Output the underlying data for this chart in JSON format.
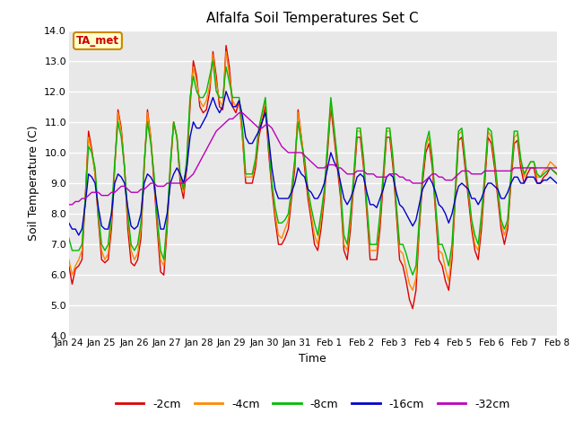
{
  "title": "Alfalfa Soil Temperatures Set C",
  "xlabel": "Time",
  "ylabel": "Soil Temperature (C)",
  "ylim": [
    4.0,
    14.0
  ],
  "yticks": [
    4.0,
    5.0,
    6.0,
    7.0,
    8.0,
    9.0,
    10.0,
    11.0,
    12.0,
    13.0,
    14.0
  ],
  "xtick_labels": [
    "Jan 24",
    "Jan 25",
    "Jan 26",
    "Jan 27",
    "Jan 28",
    "Jan 29",
    "Jan 30",
    "Jan 31",
    "Feb 1",
    "Feb 2",
    "Feb 3",
    "Feb 4",
    "Feb 5",
    "Feb 6",
    "Feb 7",
    "Feb 8"
  ],
  "figure_bg": "#ffffff",
  "plot_bg_color": "#e8e8e8",
  "grid_color": "#ffffff",
  "annotation_text": "TA_met",
  "annotation_bg": "#ffffcc",
  "annotation_border": "#cc8800",
  "annotation_text_color": "#cc0000",
  "colors": {
    "-2cm": "#dd0000",
    "-4cm": "#ff8800",
    "-8cm": "#00bb00",
    "-16cm": "#0000cc",
    "-32cm": "#bb00bb"
  },
  "series": {
    "-2cm": [
      6.3,
      5.7,
      6.2,
      6.3,
      6.5,
      8.5,
      10.7,
      10.1,
      9.3,
      7.8,
      6.5,
      6.4,
      6.5,
      7.5,
      9.5,
      11.4,
      10.8,
      9.5,
      7.5,
      6.4,
      6.3,
      6.5,
      7.2,
      9.5,
      11.4,
      10.5,
      9.0,
      7.5,
      6.1,
      6.0,
      7.5,
      9.5,
      11.0,
      10.5,
      9.0,
      8.5,
      9.5,
      11.5,
      13.0,
      12.5,
      11.5,
      11.3,
      11.4,
      12.0,
      13.3,
      12.5,
      11.5,
      11.4,
      13.5,
      12.8,
      11.5,
      11.3,
      11.7,
      10.5,
      9.0,
      9.0,
      9.0,
      9.5,
      10.5,
      11.0,
      11.5,
      10.0,
      8.8,
      7.8,
      7.0,
      7.0,
      7.2,
      7.5,
      8.5,
      9.5,
      11.4,
      10.5,
      9.5,
      8.5,
      7.8,
      7.0,
      6.8,
      7.5,
      8.5,
      10.0,
      11.5,
      10.5,
      9.5,
      8.5,
      6.8,
      6.5,
      7.5,
      9.0,
      10.5,
      10.5,
      9.5,
      8.0,
      6.5,
      6.5,
      6.5,
      7.5,
      9.0,
      10.5,
      10.5,
      9.5,
      8.0,
      6.5,
      6.3,
      5.8,
      5.2,
      4.9,
      5.5,
      7.5,
      9.0,
      10.0,
      10.3,
      9.5,
      8.0,
      6.5,
      6.3,
      5.8,
      5.5,
      6.5,
      8.5,
      10.4,
      10.5,
      9.5,
      8.5,
      7.5,
      6.8,
      6.5,
      7.5,
      9.0,
      10.5,
      10.3,
      9.5,
      8.5,
      7.5,
      7.0,
      7.5,
      9.0,
      10.3,
      10.4,
      9.5,
      9.0,
      9.3,
      9.5,
      9.5,
      9.0,
      9.0,
      9.2,
      9.3,
      9.5,
      9.4,
      9.3
    ],
    "-4cm": [
      6.5,
      6.0,
      6.3,
      6.5,
      6.8,
      8.5,
      10.5,
      10.0,
      9.3,
      7.9,
      6.8,
      6.5,
      6.7,
      7.8,
      9.5,
      11.3,
      10.7,
      9.5,
      7.8,
      6.8,
      6.5,
      6.7,
      7.5,
      9.5,
      11.3,
      10.5,
      9.2,
      7.7,
      6.5,
      6.3,
      7.7,
      9.5,
      11.0,
      10.5,
      9.2,
      8.7,
      9.7,
      11.7,
      12.8,
      12.3,
      11.7,
      11.5,
      11.7,
      12.2,
      13.2,
      12.3,
      11.7,
      11.5,
      13.3,
      12.5,
      11.7,
      11.5,
      11.7,
      10.5,
      9.2,
      9.2,
      9.2,
      9.7,
      10.7,
      11.2,
      11.7,
      10.2,
      9.0,
      8.0,
      7.3,
      7.2,
      7.5,
      7.8,
      8.7,
      9.7,
      11.3,
      10.5,
      9.7,
      8.7,
      8.0,
      7.3,
      7.0,
      7.8,
      8.7,
      10.2,
      11.7,
      10.7,
      9.7,
      8.7,
      7.0,
      6.8,
      7.8,
      9.2,
      10.7,
      10.7,
      9.7,
      8.2,
      6.8,
      6.8,
      6.8,
      7.8,
      9.2,
      10.7,
      10.7,
      9.7,
      8.2,
      6.8,
      6.7,
      6.2,
      5.7,
      5.5,
      5.9,
      7.7,
      9.2,
      10.2,
      10.5,
      9.7,
      8.2,
      6.8,
      6.7,
      6.2,
      5.8,
      6.8,
      8.7,
      10.6,
      10.7,
      9.7,
      8.7,
      7.7,
      7.0,
      6.8,
      7.8,
      9.2,
      10.7,
      10.5,
      9.7,
      8.7,
      7.7,
      7.3,
      7.7,
      9.2,
      10.5,
      10.6,
      9.7,
      9.2,
      9.5,
      9.7,
      9.7,
      9.2,
      9.2,
      9.4,
      9.5,
      9.7,
      9.6,
      9.5
    ],
    "-8cm": [
      7.2,
      6.8,
      6.8,
      6.8,
      7.0,
      8.5,
      10.2,
      10.0,
      9.5,
      8.0,
      7.0,
      6.8,
      7.0,
      8.0,
      9.7,
      11.0,
      10.5,
      9.5,
      8.0,
      7.0,
      6.8,
      7.0,
      7.7,
      9.7,
      11.0,
      10.3,
      9.3,
      7.8,
      6.8,
      6.5,
      7.8,
      9.7,
      11.0,
      10.5,
      9.3,
      8.8,
      9.8,
      11.8,
      12.5,
      12.0,
      11.8,
      11.8,
      12.0,
      12.5,
      13.0,
      12.0,
      11.8,
      11.8,
      12.8,
      12.3,
      11.8,
      11.8,
      11.8,
      10.8,
      9.3,
      9.3,
      9.3,
      9.8,
      10.8,
      11.3,
      11.8,
      10.3,
      9.0,
      8.2,
      7.7,
      7.7,
      7.8,
      8.0,
      8.8,
      9.8,
      11.0,
      10.3,
      9.8,
      8.8,
      8.2,
      7.7,
      7.3,
      8.0,
      8.8,
      10.3,
      11.8,
      10.8,
      9.8,
      8.8,
      7.3,
      7.0,
      8.0,
      9.3,
      10.8,
      10.8,
      9.8,
      8.3,
      7.0,
      7.0,
      7.0,
      8.0,
      9.3,
      10.8,
      10.8,
      9.8,
      8.3,
      7.0,
      7.0,
      6.7,
      6.3,
      6.0,
      6.3,
      7.8,
      9.3,
      10.3,
      10.7,
      9.8,
      8.3,
      7.0,
      7.0,
      6.7,
      6.3,
      7.0,
      8.8,
      10.7,
      10.8,
      9.8,
      8.8,
      7.8,
      7.3,
      7.0,
      8.0,
      9.3,
      10.8,
      10.7,
      9.8,
      8.8,
      7.8,
      7.5,
      7.8,
      9.3,
      10.7,
      10.7,
      9.8,
      9.3,
      9.5,
      9.7,
      9.7,
      9.3,
      9.2,
      9.3,
      9.4,
      9.5,
      9.4,
      9.3
    ],
    "-16cm": [
      7.7,
      7.5,
      7.5,
      7.3,
      7.5,
      8.3,
      9.3,
      9.2,
      9.0,
      8.2,
      7.6,
      7.5,
      7.5,
      8.0,
      9.0,
      9.3,
      9.2,
      9.0,
      8.2,
      7.6,
      7.5,
      7.6,
      8.0,
      9.0,
      9.3,
      9.2,
      9.0,
      8.2,
      7.5,
      7.5,
      8.0,
      9.0,
      9.3,
      9.5,
      9.3,
      9.0,
      9.5,
      10.5,
      11.0,
      10.8,
      10.8,
      11.0,
      11.2,
      11.5,
      11.8,
      11.5,
      11.3,
      11.5,
      12.0,
      11.7,
      11.5,
      11.5,
      11.7,
      11.2,
      10.5,
      10.3,
      10.3,
      10.5,
      10.7,
      11.0,
      11.3,
      10.5,
      9.5,
      8.8,
      8.5,
      8.5,
      8.5,
      8.5,
      8.7,
      9.0,
      9.5,
      9.3,
      9.2,
      8.8,
      8.7,
      8.5,
      8.5,
      8.7,
      9.0,
      9.5,
      10.0,
      9.7,
      9.5,
      9.0,
      8.5,
      8.3,
      8.5,
      8.8,
      9.2,
      9.3,
      9.2,
      8.7,
      8.3,
      8.3,
      8.2,
      8.5,
      8.8,
      9.2,
      9.3,
      9.2,
      8.7,
      8.3,
      8.2,
      8.0,
      7.8,
      7.6,
      7.8,
      8.3,
      8.8,
      9.0,
      9.2,
      9.0,
      8.7,
      8.3,
      8.2,
      8.0,
      7.7,
      8.0,
      8.5,
      8.9,
      9.0,
      8.9,
      8.8,
      8.5,
      8.5,
      8.3,
      8.5,
      8.8,
      9.0,
      9.0,
      8.9,
      8.8,
      8.5,
      8.5,
      8.7,
      9.0,
      9.2,
      9.2,
      9.0,
      9.0,
      9.2,
      9.2,
      9.2,
      9.0,
      9.0,
      9.1,
      9.1,
      9.2,
      9.1,
      9.0
    ],
    "-32cm": [
      8.3,
      8.3,
      8.4,
      8.4,
      8.5,
      8.5,
      8.6,
      8.7,
      8.7,
      8.7,
      8.6,
      8.6,
      8.6,
      8.7,
      8.7,
      8.8,
      8.9,
      8.9,
      8.8,
      8.7,
      8.7,
      8.7,
      8.8,
      8.8,
      8.9,
      9.0,
      9.0,
      8.9,
      8.9,
      8.9,
      9.0,
      9.0,
      9.0,
      9.0,
      9.0,
      9.0,
      9.1,
      9.2,
      9.3,
      9.5,
      9.7,
      9.9,
      10.1,
      10.3,
      10.5,
      10.7,
      10.8,
      10.9,
      11.0,
      11.1,
      11.1,
      11.2,
      11.3,
      11.3,
      11.2,
      11.1,
      11.0,
      10.9,
      10.8,
      10.8,
      10.9,
      10.9,
      10.8,
      10.6,
      10.4,
      10.2,
      10.1,
      10.0,
      10.0,
      10.0,
      10.0,
      10.0,
      9.9,
      9.8,
      9.7,
      9.6,
      9.5,
      9.5,
      9.5,
      9.6,
      9.6,
      9.6,
      9.5,
      9.5,
      9.4,
      9.3,
      9.3,
      9.3,
      9.4,
      9.4,
      9.4,
      9.3,
      9.3,
      9.3,
      9.2,
      9.2,
      9.2,
      9.2,
      9.3,
      9.3,
      9.3,
      9.2,
      9.2,
      9.1,
      9.1,
      9.0,
      9.0,
      9.0,
      9.0,
      9.1,
      9.2,
      9.3,
      9.3,
      9.2,
      9.2,
      9.1,
      9.1,
      9.1,
      9.2,
      9.3,
      9.4,
      9.4,
      9.4,
      9.3,
      9.3,
      9.3,
      9.3,
      9.4,
      9.4,
      9.4,
      9.4,
      9.4,
      9.4,
      9.4,
      9.4,
      9.4,
      9.5,
      9.5,
      9.5,
      9.5,
      9.5,
      9.5,
      9.5,
      9.5,
      9.5,
      9.5,
      9.5,
      9.5,
      9.5,
      9.5
    ]
  }
}
